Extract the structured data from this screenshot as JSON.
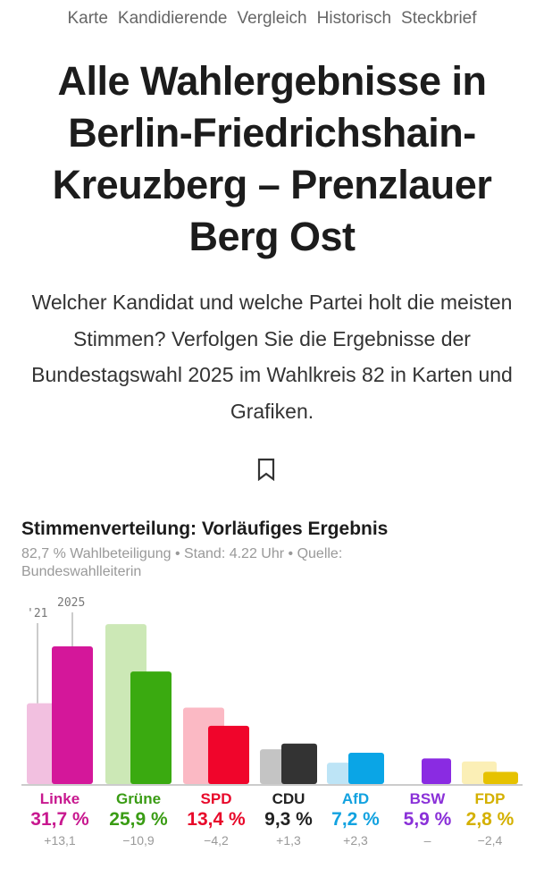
{
  "nav": [
    "Karte",
    "Kandidierende",
    "Vergleich",
    "Historisch",
    "Steckbrief"
  ],
  "title": "Alle Wahlergebnisse in Berlin-Friedrichshain-Kreuzberg – Prenzlauer Berg Ost",
  "lead": "Welcher Kandidat und welche Partei holt die meisten Stimmen? Verfolgen Sie die Ergebnisse der Bundestagswahl 2025 im Wahlkreis 82 in Karten und Grafiken.",
  "chart_title": "Stimmenverteilung: Vorläufiges Ergebnis",
  "meta": "82,7 % Wahlbeteiligung • Stand: 4.22 Uhr • Quelle: Bundeswahlleiterin",
  "chart_data": {
    "type": "bar",
    "legend": {
      "prev": "'21",
      "current": "2025"
    },
    "categories": [
      "Linke",
      "Grüne",
      "SPD",
      "CDU",
      "AfD",
      "BSW",
      "FDP"
    ],
    "series": [
      {
        "name": "'21",
        "values": [
          18.6,
          36.8,
          17.6,
          8.0,
          4.9,
          null,
          5.2
        ]
      },
      {
        "name": "2025",
        "values": [
          31.7,
          25.9,
          13.4,
          9.3,
          7.2,
          5.9,
          2.8
        ]
      }
    ],
    "value_labels": [
      "31,7 %",
      "25,9 %",
      "13,4 %",
      "9,3 %",
      "7,2 %",
      "5,9 %",
      "2,8 %"
    ],
    "diff_labels": [
      "+13,1",
      "−10,9",
      "−4,2",
      "+1,3",
      "+2,3",
      "–",
      "−2,4"
    ],
    "colors": [
      "#d4179a",
      "#3aaa10",
      "#f0052b",
      "#333333",
      "#0aa5e6",
      "#8a2be2",
      "#e6c200"
    ],
    "colors_prev": [
      "#f2c0e0",
      "#cce8b6",
      "#fbb9c4",
      "#c4c4c4",
      "#bde4f6",
      "#ddd0f5",
      "#fbefb6"
    ],
    "label_colors": [
      "#c8188f",
      "#3a9c14",
      "#e8082a",
      "#222222",
      "#12a2e0",
      "#8a30d8",
      "#d4b000"
    ],
    "ylim": [
      0,
      40
    ]
  }
}
